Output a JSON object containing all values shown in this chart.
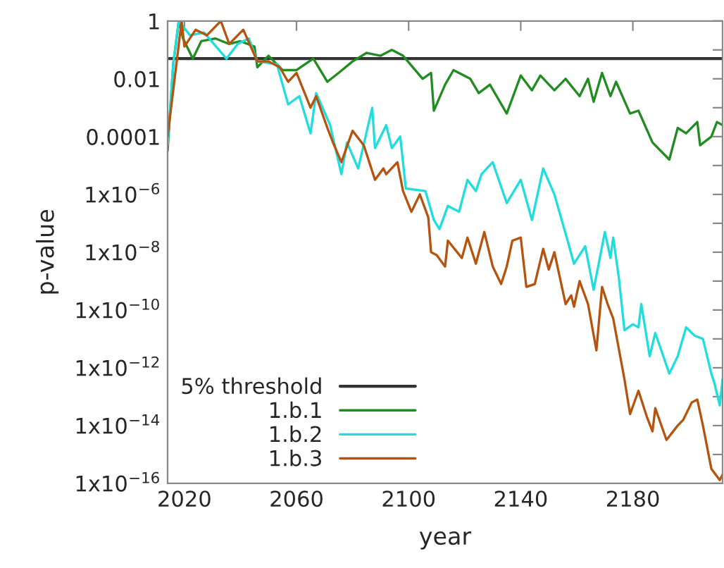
{
  "chart_data": {
    "type": "line",
    "xlabel": "year",
    "ylabel": "p-value",
    "log": "y",
    "xlim": [
      2014,
      2212
    ],
    "xticks": [
      2020,
      2060,
      2100,
      2140,
      2180
    ],
    "ylim": [
      1e-16,
      1
    ],
    "yticks": [
      {
        "value": 1,
        "label": "1"
      },
      {
        "value": 0.1,
        "label": null
      },
      {
        "value": 0.01,
        "label": "0.01"
      },
      {
        "value": 0.001,
        "label": null
      },
      {
        "value": 0.0001,
        "label": "0.0001"
      },
      {
        "value": 1e-05,
        "label": null
      },
      {
        "value": 1e-06,
        "label": "1x10$^{−6}$"
      },
      {
        "value": 1e-07,
        "label": null
      },
      {
        "value": 1e-08,
        "label": "1x10$^{−8}$"
      },
      {
        "value": 1e-09,
        "label": null
      },
      {
        "value": 1e-10,
        "label": "1x10$^{−10}$"
      },
      {
        "value": 1e-11,
        "label": null
      },
      {
        "value": 1e-12,
        "label": "1x10$^{−12}$"
      },
      {
        "value": 1e-13,
        "label": null
      },
      {
        "value": 1e-14,
        "label": "1x10$^{−14}$"
      },
      {
        "value": 1e-15,
        "label": null
      },
      {
        "value": 1e-16,
        "label": "1x10$^{−16}$"
      }
    ],
    "grid": false,
    "legend": "bottom left",
    "marker": "none",
    "line_style": "solid",
    "ref_lines": [
      {
        "axis": "y",
        "value": 0.05,
        "label": "5% threshold",
        "color": "#333333",
        "line_style": "solid"
      }
    ],
    "series": [
      {
        "name": "1.b.1",
        "color": "#228b22",
        "x": [
          2014,
          2016,
          2018,
          2019.5,
          2023,
          2026,
          2031,
          2036,
          2040,
          2045,
          2046,
          2050,
          2055,
          2060,
          2066,
          2071,
          2075,
          2080,
          2085,
          2090,
          2094,
          2098,
          2105,
          2108,
          2109,
          2113,
          2116,
          2122,
          2125,
          2129,
          2135,
          2140,
          2144,
          2147,
          2152,
          2156,
          2161,
          2164,
          2166,
          2169,
          2172,
          2174,
          2179,
          2182,
          2187,
          2193,
          2196,
          2199,
          2203,
          2204,
          2208,
          2210,
          2212
        ],
        "values": [
          3.2e-05,
          0.032,
          1,
          0.25,
          0.05,
          0.2,
          0.25,
          0.16,
          0.2,
          0.13,
          0.025,
          0.063,
          0.02,
          0.02,
          0.05,
          0.0079,
          0.016,
          0.04,
          0.079,
          0.063,
          0.1,
          0.063,
          0.01,
          0.016,
          0.00079,
          0.0063,
          0.02,
          0.01,
          0.0032,
          0.0063,
          0.00063,
          0.013,
          0.004,
          0.013,
          0.004,
          0.01,
          0.0025,
          0.01,
          0.0016,
          0.016,
          0.0025,
          0.0079,
          0.00063,
          0.00079,
          6.3e-05,
          1.6e-05,
          0.0002,
          0.00013,
          0.00032,
          5e-05,
          0.0001,
          0.00032,
          0.00025
        ]
      },
      {
        "name": "1.b.2",
        "color": "#22dddd",
        "x": [
          2014,
          2016,
          2018,
          2022,
          2027,
          2035,
          2039,
          2043,
          2046,
          2053,
          2057,
          2061,
          2065,
          2067,
          2072,
          2076,
          2078,
          2082,
          2087,
          2088,
          2092,
          2094,
          2097,
          2099,
          2106,
          2109,
          2111,
          2114,
          2118,
          2121,
          2124,
          2126,
          2130,
          2135,
          2140,
          2144,
          2148,
          2152,
          2157,
          2159,
          2163,
          2166,
          2170,
          2172,
          2173,
          2175,
          2177,
          2180,
          2182,
          2183,
          2186,
          2188,
          2193,
          2196,
          2199,
          2202,
          2205,
          2208,
          2209,
          2211,
          2212
        ],
        "values": [
          5e-05,
          0.032,
          1,
          0.32,
          0.4,
          0.05,
          0.16,
          0.25,
          0.04,
          0.032,
          0.0013,
          0.0025,
          0.00013,
          0.0032,
          0.00025,
          5e-06,
          6.3e-05,
          7.9e-06,
          0.001,
          4e-05,
          0.00025,
          4e-05,
          0.0001,
          1.6e-06,
          1.3e-06,
          1.3e-07,
          6.3e-08,
          4e-07,
          2.5e-07,
          3.2e-06,
          1.3e-06,
          5e-06,
          1.3e-05,
          5e-07,
          3.2e-06,
          1.3e-07,
          7.9e-06,
          1e-06,
          2e-08,
          4e-09,
          1.6e-08,
          5e-10,
          5e-08,
          6.3e-09,
          3.2e-08,
          1.3e-09,
          2e-11,
          3.2e-11,
          2.5e-11,
          1.6e-10,
          2.5e-12,
          1.6e-11,
          6.3e-13,
          2.5e-12,
          2.5e-11,
          1.3e-11,
          1e-11,
          6.3e-13,
          3.2e-13,
          5e-14,
          4e-13
        ]
      },
      {
        "name": "1.b.3",
        "color": "#b5540f",
        "x": [
          2014,
          2019,
          2020,
          2024,
          2028,
          2033,
          2036,
          2041,
          2046,
          2050,
          2054,
          2057,
          2060,
          2065,
          2067,
          2071,
          2073,
          2076,
          2080,
          2084,
          2088,
          2091,
          2092,
          2096,
          2098,
          2101,
          2104,
          2107,
          2108,
          2110,
          2113,
          2114,
          2119,
          2121,
          2124,
          2127,
          2130,
          2133,
          2135,
          2137,
          2140,
          2142,
          2145,
          2148,
          2150,
          2152,
          2156,
          2158,
          2159,
          2161,
          2164,
          2167,
          2169,
          2171,
          2173,
          2177,
          2179,
          2182,
          2185,
          2187,
          2188,
          2192,
          2196,
          2198,
          2201,
          2203,
          2205,
          2208,
          2211,
          2212
        ],
        "values": [
          0.0001,
          1,
          0.13,
          0.5,
          0.32,
          1,
          0.16,
          0.5,
          0.04,
          0.04,
          0.025,
          0.0079,
          0.016,
          0.001,
          0.0025,
          0.0002,
          6.3e-05,
          1.3e-05,
          0.00016,
          5e-05,
          3.2e-06,
          7.9e-06,
          5e-06,
          1.3e-05,
          1.3e-06,
          2.5e-07,
          1e-06,
          1.6e-07,
          1e-08,
          7.9e-09,
          3.2e-09,
          2.5e-08,
          6.3e-09,
          3.2e-08,
          4e-09,
          5e-08,
          3.2e-09,
          7.9e-10,
          3.2e-09,
          2.5e-08,
          3.2e-08,
          6.3e-10,
          7.9e-10,
          1.3e-08,
          2.5e-09,
          1e-08,
          1.6e-10,
          3.2e-10,
          1.3e-10,
          1e-09,
          1.6e-10,
          4e-12,
          6.3e-10,
          1.6e-10,
          5e-11,
          4e-13,
          2.5e-14,
          1.6e-13,
          2e-14,
          6.3e-15,
          4e-14,
          3.2e-15,
          1e-14,
          1.6e-14,
          6.3e-14,
          7.9e-14,
          1e-14,
          3.2e-16,
          1.3e-16,
          2e-16
        ]
      }
    ]
  }
}
